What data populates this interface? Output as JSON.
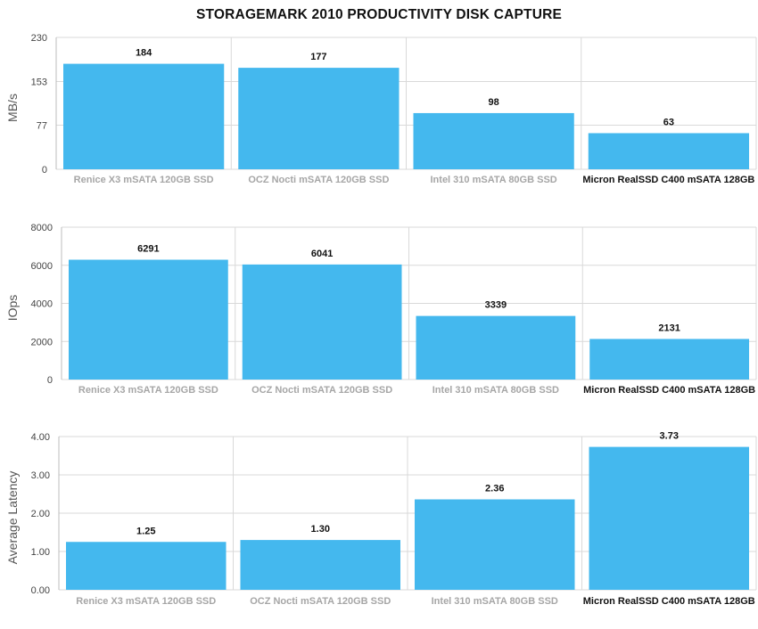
{
  "title": "STORAGEMARK 2010 PRODUCTIVITY DISK CAPTURE",
  "colors": {
    "bar": "#44b8ee",
    "highlight_label": "#111111",
    "muted_label": "#a6a6a6",
    "grid": "#d9d9d9"
  },
  "chart_data": [
    {
      "type": "bar",
      "categories": [
        "Renice X3 mSATA 120GB SSD",
        "OCZ Nocti mSATA 120GB SSD",
        "Intel 310 mSATA 80GB SSD",
        "Micron RealSSD C400 mSATA 128GB"
      ],
      "highlight_category": "Micron RealSSD C400 mSATA 128GB",
      "values": [
        184,
        177,
        98,
        63
      ],
      "value_labels": [
        "184",
        "177",
        "98",
        "63"
      ],
      "ylabel": "MB/s",
      "ylim": [
        0,
        230
      ],
      "yticks": [
        0,
        77,
        153,
        230
      ],
      "ytick_labels": [
        "0",
        "77",
        "153",
        "230"
      ],
      "grid": true
    },
    {
      "type": "bar",
      "categories": [
        "Renice X3 mSATA 120GB SSD",
        "OCZ Nocti mSATA 120GB SSD",
        "Intel 310 mSATA 80GB SSD",
        "Micron RealSSD C400 mSATA 128GB"
      ],
      "highlight_category": "Micron RealSSD C400 mSATA 128GB",
      "values": [
        6291,
        6041,
        3339,
        2131
      ],
      "value_labels": [
        "6291",
        "6041",
        "3339",
        "2131"
      ],
      "ylabel": "IOps",
      "ylim": [
        0,
        8000
      ],
      "yticks": [
        0,
        2000,
        4000,
        6000,
        8000
      ],
      "ytick_labels": [
        "0",
        "2000",
        "4000",
        "6000",
        "8000"
      ],
      "grid": true
    },
    {
      "type": "bar",
      "categories": [
        "Renice X3 mSATA 120GB SSD",
        "OCZ Nocti mSATA 120GB SSD",
        "Intel 310 mSATA 80GB SSD",
        "Micron RealSSD C400 mSATA 128GB"
      ],
      "highlight_category": "Micron RealSSD C400 mSATA 128GB",
      "values": [
        1.25,
        1.3,
        2.36,
        3.73
      ],
      "value_labels": [
        "1.25",
        "1.30",
        "2.36",
        "3.73"
      ],
      "ylabel": "Average Latency",
      "ylim": [
        0,
        4
      ],
      "yticks": [
        0,
        1,
        2,
        3,
        4
      ],
      "ytick_labels": [
        "0.00",
        "1.00",
        "2.00",
        "3.00",
        "4.00"
      ],
      "grid": true
    }
  ]
}
